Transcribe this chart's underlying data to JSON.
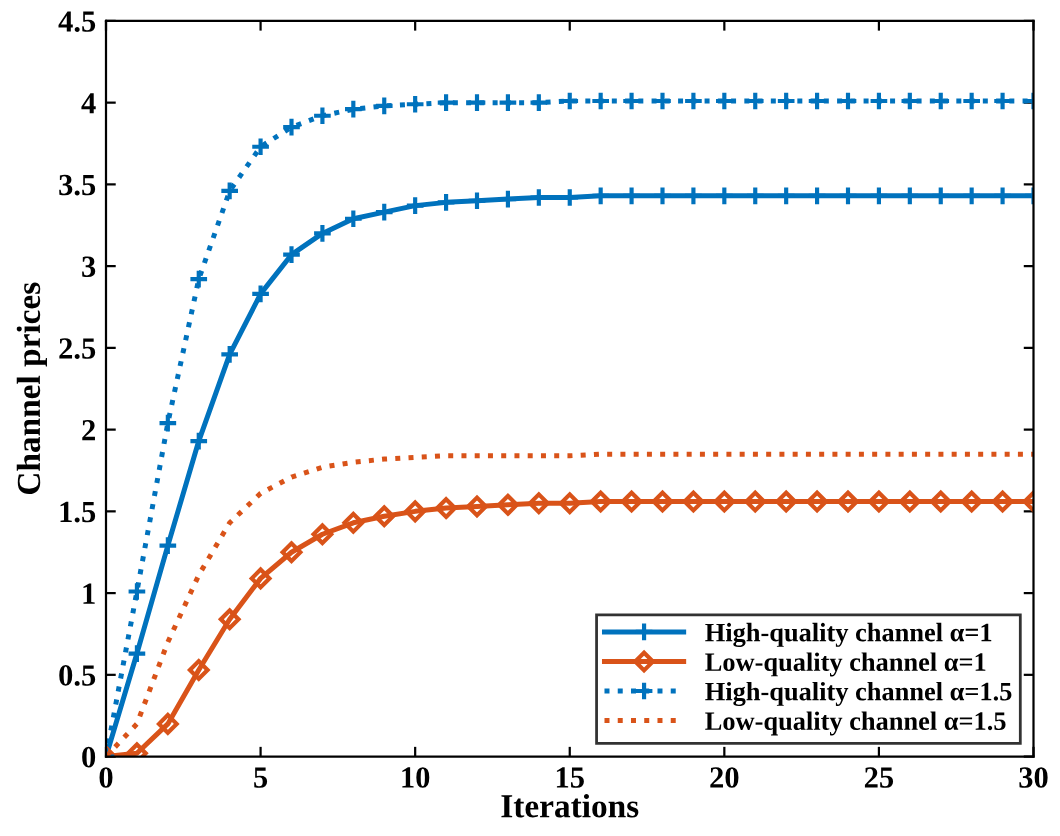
{
  "chart_data": {
    "type": "line",
    "xlabel": "Iterations",
    "ylabel": "Channel prices",
    "x": [
      0,
      1,
      2,
      3,
      4,
      5,
      6,
      7,
      8,
      9,
      10,
      11,
      12,
      13,
      14,
      15,
      16,
      17,
      18,
      19,
      20,
      21,
      22,
      23,
      24,
      25,
      26,
      27,
      28,
      29,
      30
    ],
    "xlim": [
      0,
      30
    ],
    "xticks": [
      0,
      5,
      10,
      15,
      20,
      25,
      30
    ],
    "ylim": [
      0,
      4.5
    ],
    "yticks": [
      0,
      0.5,
      1,
      1.5,
      2,
      2.5,
      3,
      3.5,
      4,
      4.5
    ],
    "grid": false,
    "legend": "bottom right",
    "series": [
      {
        "name": "High-quality channel α=1",
        "color": "#0072bd",
        "marker": "cross",
        "line_style": "solid",
        "values": [
          0,
          0.63,
          1.29,
          1.93,
          2.46,
          2.83,
          3.07,
          3.2,
          3.29,
          3.33,
          3.37,
          3.39,
          3.4,
          3.41,
          3.42,
          3.42,
          3.43,
          3.43,
          3.43,
          3.43,
          3.43,
          3.43,
          3.43,
          3.43,
          3.43,
          3.43,
          3.43,
          3.43,
          3.43,
          3.43,
          3.43
        ]
      },
      {
        "name": "Low-quality channel α=1",
        "color": "#d95319",
        "marker": "diamond",
        "line_style": "solid",
        "values": [
          0,
          0.02,
          0.2,
          0.53,
          0.84,
          1.09,
          1.25,
          1.36,
          1.43,
          1.47,
          1.5,
          1.52,
          1.53,
          1.54,
          1.55,
          1.55,
          1.56,
          1.56,
          1.56,
          1.56,
          1.56,
          1.56,
          1.56,
          1.56,
          1.56,
          1.56,
          1.56,
          1.56,
          1.56,
          1.56,
          1.56
        ]
      },
      {
        "name": "High-quality channel α=1.5",
        "color": "#0072bd",
        "marker": "cross",
        "line_style": "dotted",
        "values": [
          0,
          1.01,
          2.04,
          2.92,
          3.46,
          3.73,
          3.85,
          3.92,
          3.96,
          3.98,
          3.99,
          4.0,
          4.0,
          4.0,
          4.0,
          4.01,
          4.01,
          4.01,
          4.01,
          4.01,
          4.01,
          4.01,
          4.01,
          4.01,
          4.01,
          4.01,
          4.01,
          4.01,
          4.01,
          4.01,
          4.01
        ]
      },
      {
        "name": "Low-quality channel α=1.5",
        "color": "#d95319",
        "marker": "none",
        "line_style": "dotted",
        "values": [
          0,
          0.2,
          0.7,
          1.11,
          1.43,
          1.61,
          1.71,
          1.77,
          1.8,
          1.82,
          1.83,
          1.84,
          1.84,
          1.84,
          1.84,
          1.84,
          1.85,
          1.85,
          1.85,
          1.85,
          1.85,
          1.85,
          1.85,
          1.85,
          1.85,
          1.85,
          1.85,
          1.85,
          1.85,
          1.85,
          1.85
        ]
      }
    ]
  }
}
